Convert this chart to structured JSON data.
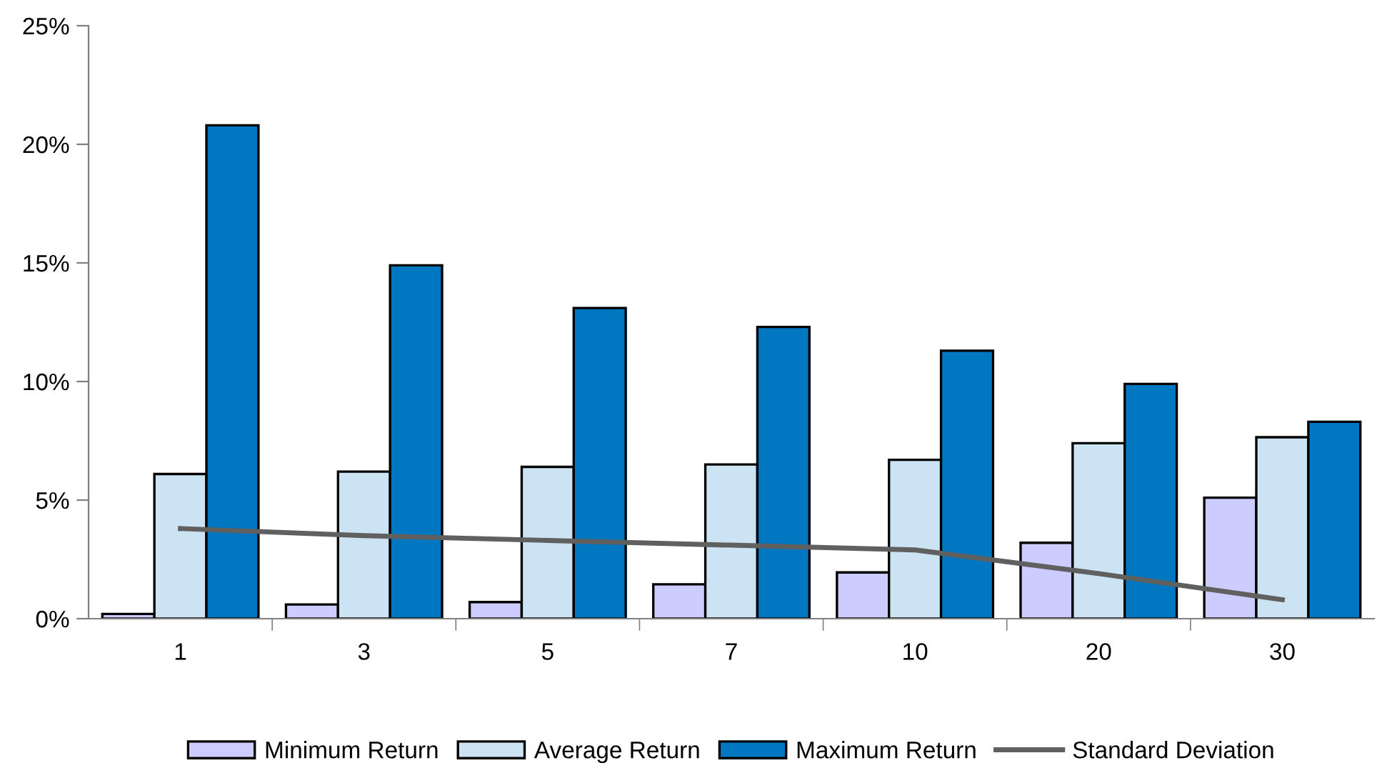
{
  "chart_data": {
    "type": "bar",
    "categories": [
      "1",
      "3",
      "5",
      "7",
      "10",
      "20",
      "30"
    ],
    "series": [
      {
        "name": "Minimum Return",
        "color": "#ccccff",
        "values": [
          0.2,
          0.6,
          0.7,
          1.45,
          1.95,
          3.2,
          5.1
        ]
      },
      {
        "name": "Average Return",
        "color": "#cce3f3",
        "values": [
          6.1,
          6.2,
          6.4,
          6.5,
          6.7,
          7.4,
          7.65
        ]
      },
      {
        "name": "Maximum Return",
        "color": "#0077c0",
        "values": [
          20.8,
          14.9,
          13.1,
          12.3,
          11.3,
          9.9,
          8.3
        ]
      },
      {
        "name": "Standard Deviation",
        "type": "line",
        "color": "#606060",
        "values": [
          3.8,
          3.5,
          3.3,
          3.1,
          2.9,
          1.9,
          0.8
        ]
      }
    ],
    "ylim": [
      0,
      25
    ],
    "yticks": [
      {
        "value": 0,
        "label": "0%"
      },
      {
        "value": 5,
        "label": "5%"
      },
      {
        "value": 10,
        "label": "10%"
      },
      {
        "value": 15,
        "label": "15%"
      },
      {
        "value": 20,
        "label": "20%"
      },
      {
        "value": 25,
        "label": "25%"
      }
    ],
    "grid": false,
    "legend": "bottom"
  }
}
